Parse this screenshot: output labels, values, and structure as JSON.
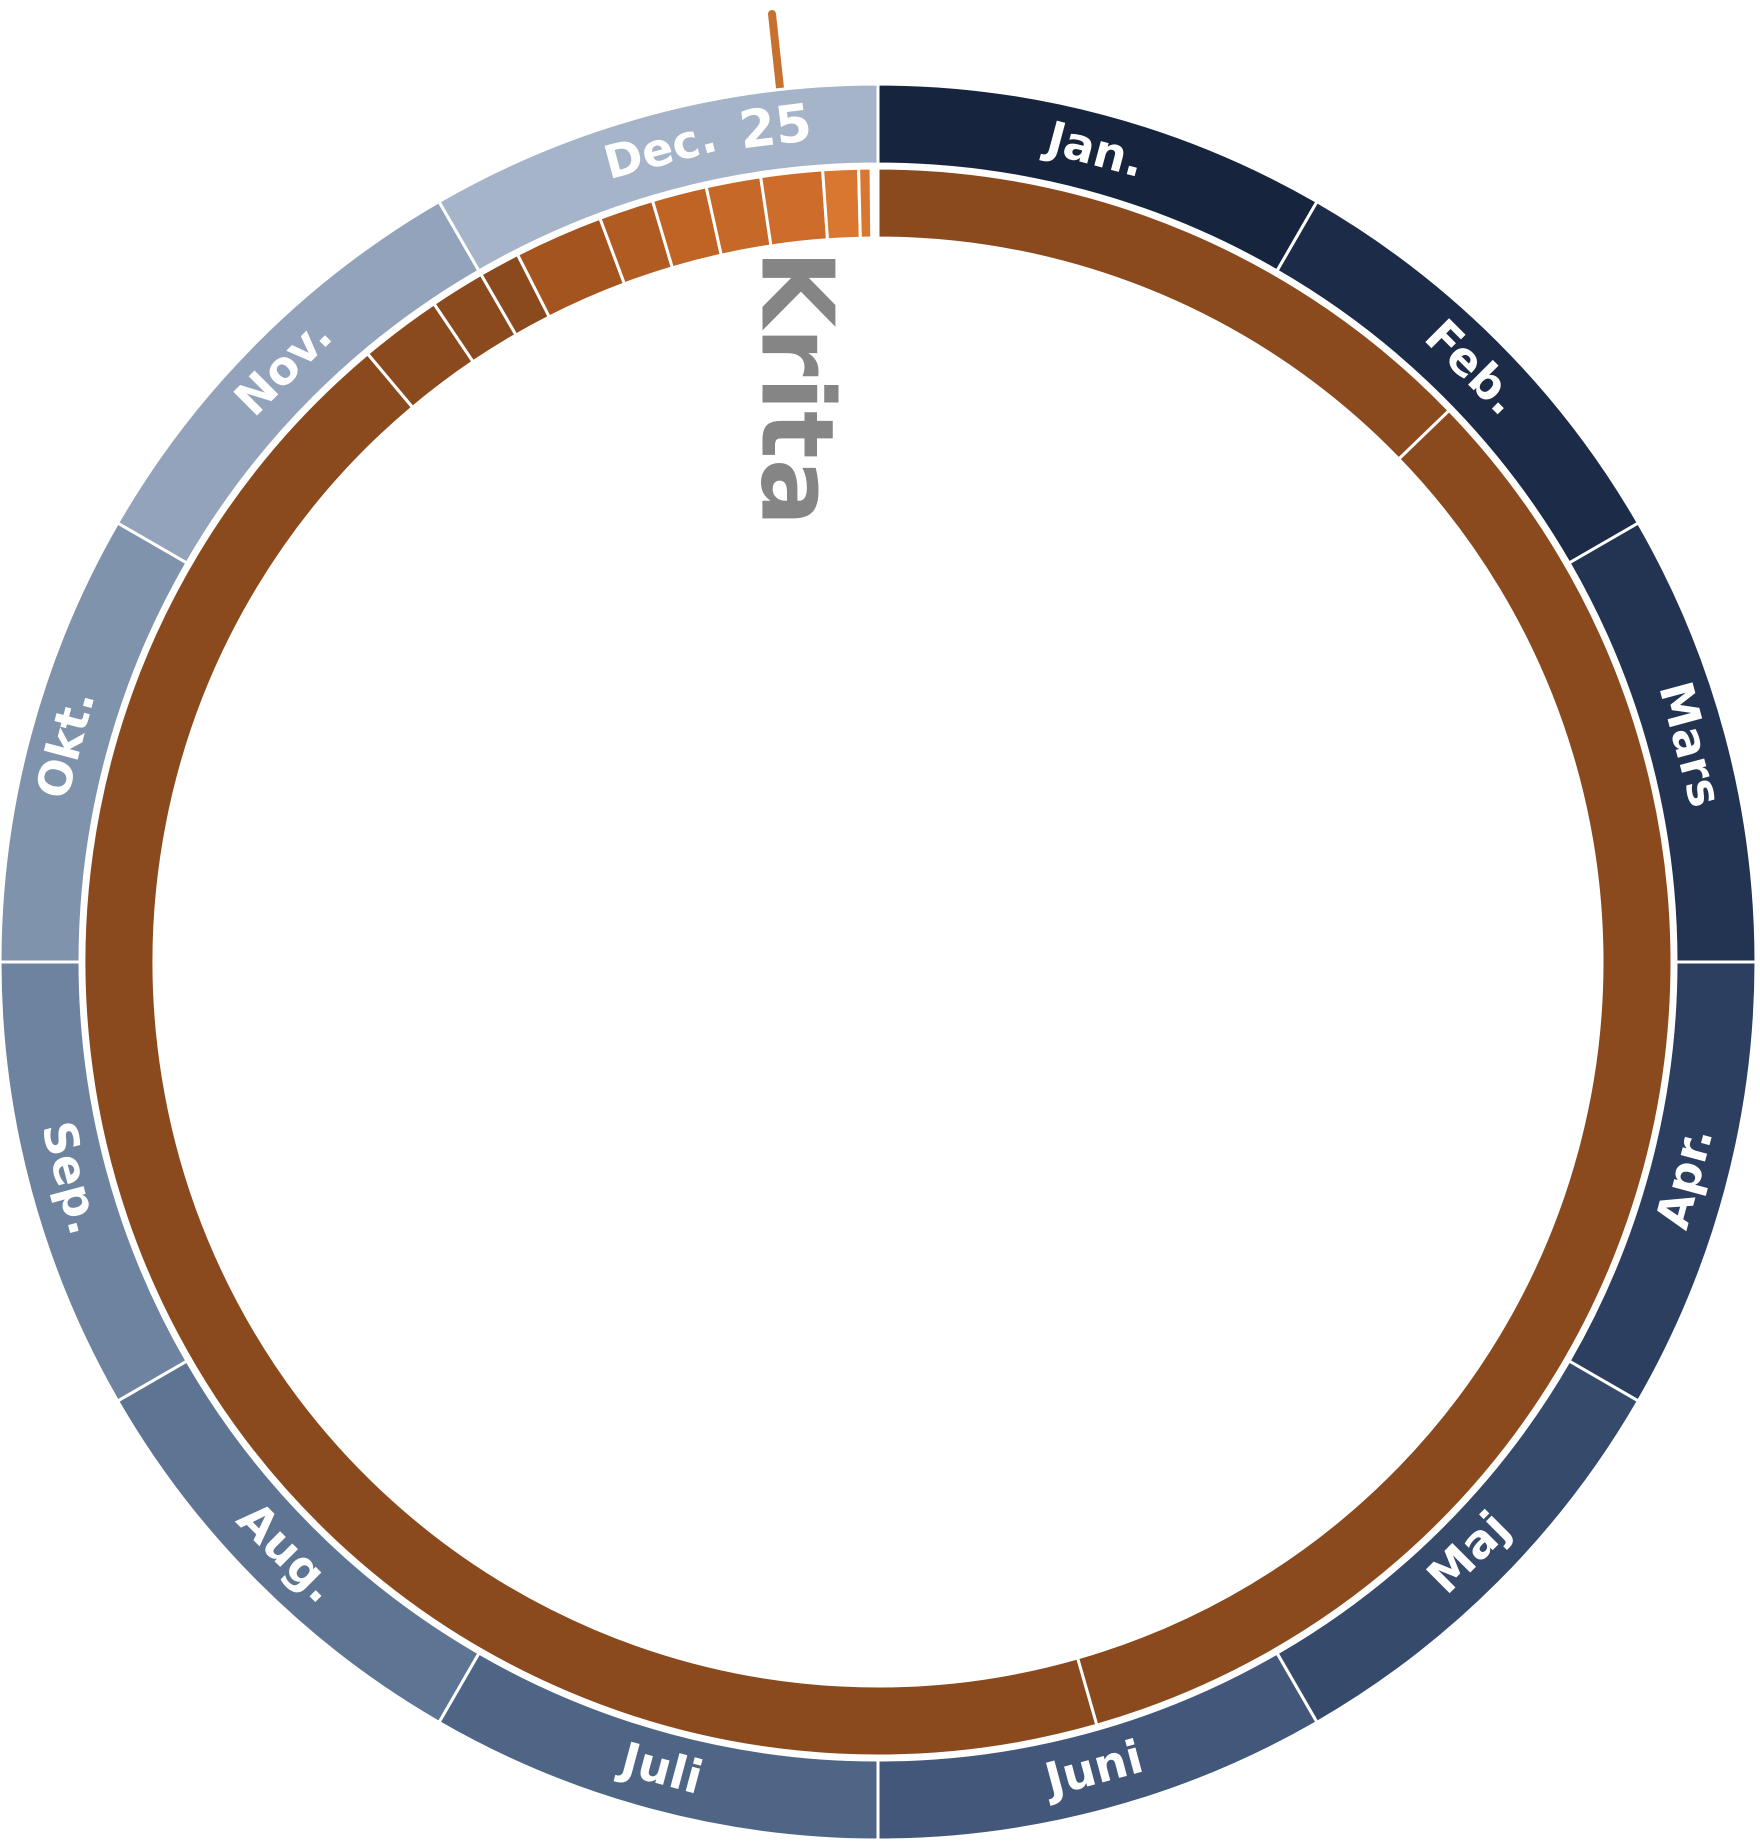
{
  "months": [
    {
      "label": "Jan.",
      "color": "#16243d"
    },
    {
      "label": "Feb.",
      "color": "#1c2b47"
    },
    {
      "label": "Mars",
      "color": "#233453"
    },
    {
      "label": "Apr.",
      "color": "#2c3f60"
    },
    {
      "label": "Maj",
      "color": "#364a6c"
    },
    {
      "label": "Juni",
      "color": "#425779"
    },
    {
      "label": "Juli",
      "color": "#4f6586"
    },
    {
      "label": "Aug.",
      "color": "#5e7493"
    },
    {
      "label": "Sep.",
      "color": "#6e83a0"
    },
    {
      "label": "Okt.",
      "color": "#8093ad"
    },
    {
      "label": "Nov.",
      "color": "#92a3bb"
    },
    {
      "label": "Dec.",
      "color": "#a5b4c9"
    }
  ],
  "day_label": "25",
  "event_label": "Krita"
}
